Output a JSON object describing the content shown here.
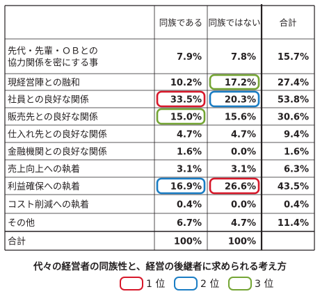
{
  "chart_data": {
    "type": "table",
    "title": "代々の経営者の同族性と、経営の後継者に求められる考え方",
    "columns": [
      "同族である",
      "同族ではない",
      "合計"
    ],
    "rows": [
      {
        "label": [
          "先代・先輩・ＯＢとの",
          "協力関係を密にする事"
        ],
        "values": [
          "7.9%",
          "7.8%",
          "15.7%"
        ]
      },
      {
        "label": [
          "現経営陣との融和"
        ],
        "values": [
          "10.2%",
          "17.2%",
          "27.4%"
        ]
      },
      {
        "label": [
          "社員との良好な関係"
        ],
        "values": [
          "33.5%",
          "20.3%",
          "53.8%"
        ]
      },
      {
        "label": [
          "販売先との良好な関係"
        ],
        "values": [
          "15.0%",
          "15.6%",
          "30.6%"
        ]
      },
      {
        "label": [
          "仕入れ先との良好な関係"
        ],
        "values": [
          "4.7%",
          "4.7%",
          "9.4%"
        ]
      },
      {
        "label": [
          "金融機関との良好な関係"
        ],
        "values": [
          "1.6%",
          "0.0%",
          "1.6%"
        ]
      },
      {
        "label": [
          "売上向上への執着"
        ],
        "values": [
          "3.1%",
          "3.1%",
          "6.3%"
        ]
      },
      {
        "label": [
          "利益確保への執着"
        ],
        "values": [
          "16.9%",
          "26.6%",
          "43.5%"
        ]
      },
      {
        "label": [
          "コスト削減への執着"
        ],
        "values": [
          "0.4%",
          "0.0%",
          "0.4%"
        ]
      },
      {
        "label": [
          "その他"
        ],
        "values": [
          "6.7%",
          "4.7%",
          "11.4%"
        ]
      },
      {
        "label": [
          "合計"
        ],
        "values": [
          "100%",
          "100%",
          ""
        ]
      }
    ],
    "highlights": [
      {
        "row": 2,
        "col": 0,
        "rank": 1
      },
      {
        "row": 7,
        "col": 1,
        "rank": 1
      },
      {
        "row": 2,
        "col": 1,
        "rank": 2
      },
      {
        "row": 7,
        "col": 0,
        "rank": 2
      },
      {
        "row": 1,
        "col": 1,
        "rank": 3
      },
      {
        "row": 3,
        "col": 0,
        "rank": 3
      }
    ],
    "rank_colors": {
      "1": "#d7182a",
      "2": "#1a7dc4",
      "3": "#74a534"
    }
  },
  "legend": [
    {
      "rank": 1,
      "label": "1 位"
    },
    {
      "rank": 2,
      "label": "2 位"
    },
    {
      "rank": 3,
      "label": "3 位"
    }
  ]
}
